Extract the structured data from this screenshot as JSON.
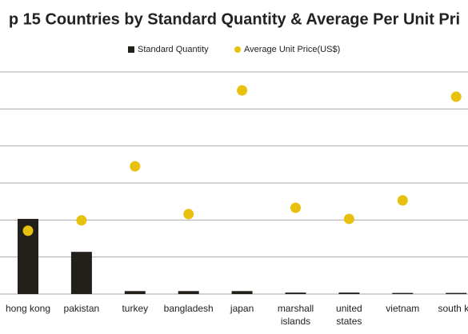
{
  "chart_data": {
    "type": "bar_dot",
    "title": "p 15 Countries by Standard Quantity & Average Per Unit Pri",
    "categories": [
      "hong kong",
      "pakistan",
      "turkey",
      "bangladesh",
      "japan",
      "marshall islands",
      "united states",
      "vietnam",
      "south ko"
    ],
    "series": [
      {
        "name": "Standard Quantity",
        "color": "#231f1a",
        "mark": "bar",
        "values": [
          2.03,
          1.14,
          0.08,
          0.08,
          0.08,
          0.04,
          0.04,
          0.03,
          0.03
        ]
      },
      {
        "name": "Average Unit Price(US$)",
        "color": "#e8c00e",
        "mark": "dot",
        "values": [
          1.71,
          1.99,
          3.45,
          2.16,
          5.5,
          2.33,
          2.03,
          2.53,
          5.33
        ]
      }
    ],
    "ylim": [
      0,
      6
    ],
    "yticks": [
      0,
      1,
      2,
      3,
      4,
      5,
      6
    ],
    "ytick_labels": false,
    "grid": true,
    "legend": "top"
  }
}
